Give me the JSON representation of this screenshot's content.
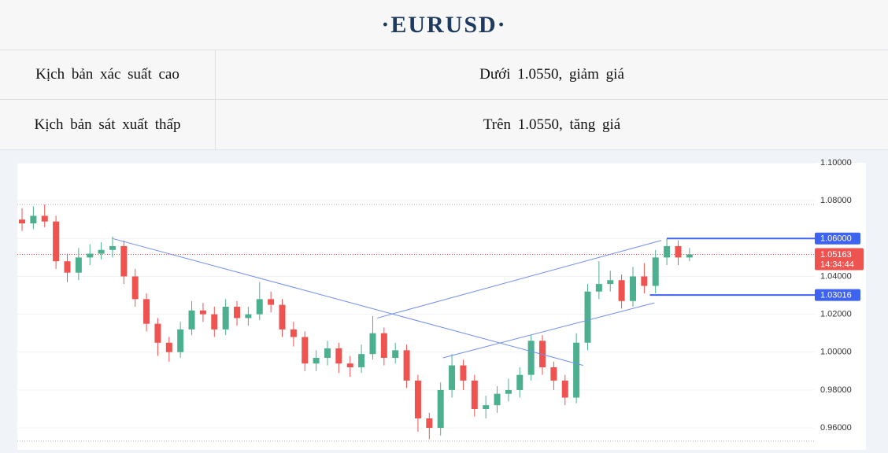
{
  "header": {
    "title": "·EURUSD·"
  },
  "table": {
    "rows": [
      [
        "Kịch bản xác suất cao",
        "Dưới 1.0550, giảm giá"
      ],
      [
        "Kịch bản sát xuất thấp",
        "Trên 1.0550, tăng giá"
      ]
    ]
  },
  "chart_data": {
    "type": "candlestick",
    "open": [
      1.07,
      1.068,
      1.072,
      1.069,
      1.048,
      1.042,
      1.05,
      1.052,
      1.054,
      1.056,
      1.04,
      1.028,
      1.015,
      1.005,
      1.0,
      1.012,
      1.022,
      1.02,
      1.012,
      1.024,
      1.018,
      1.02,
      1.028,
      1.025,
      1.012,
      1.008,
      0.994,
      0.997,
      1.002,
      0.994,
      0.992,
      0.999,
      1.01,
      0.997,
      1.001,
      0.985,
      0.965,
      0.96,
      0.98,
      0.993,
      0.985,
      0.97,
      0.972,
      0.978,
      0.98,
      0.988,
      1.006,
      0.992,
      0.985,
      0.976,
      1.005,
      1.032,
      1.036,
      1.038,
      1.027,
      1.04,
      1.035,
      1.05,
      1.056,
      1.05
    ],
    "high": [
      1.076,
      1.077,
      1.078,
      1.072,
      1.052,
      1.055,
      1.057,
      1.058,
      1.061,
      1.059,
      1.044,
      1.031,
      1.018,
      1.008,
      1.016,
      1.027,
      1.026,
      1.024,
      1.028,
      1.027,
      1.024,
      1.037,
      1.032,
      1.028,
      1.016,
      1.011,
      1.001,
      1.006,
      1.005,
      0.998,
      1.004,
      1.019,
      1.013,
      1.005,
      1.004,
      0.988,
      0.968,
      0.984,
      0.999,
      0.996,
      0.988,
      0.977,
      0.982,
      0.986,
      0.992,
      1.009,
      1.009,
      0.995,
      0.988,
      1.01,
      1.036,
      1.048,
      1.043,
      1.041,
      1.045,
      1.047,
      1.054,
      1.06,
      1.059,
      1.055
    ],
    "low": [
      1.064,
      1.065,
      1.066,
      1.044,
      1.037,
      1.038,
      1.046,
      1.049,
      1.05,
      1.036,
      1.024,
      1.011,
      0.998,
      0.995,
      0.997,
      1.009,
      1.016,
      1.008,
      1.009,
      1.014,
      1.014,
      1.017,
      1.021,
      1.008,
      1.003,
      0.99,
      0.99,
      0.993,
      0.989,
      0.987,
      0.989,
      0.996,
      0.993,
      0.994,
      0.981,
      0.958,
      0.954,
      0.956,
      0.976,
      0.98,
      0.966,
      0.965,
      0.968,
      0.974,
      0.976,
      0.985,
      0.988,
      0.98,
      0.972,
      0.973,
      1.001,
      1.028,
      1.032,
      1.023,
      1.024,
      1.031,
      1.031,
      1.046,
      1.046,
      1.048
    ],
    "close": [
      1.068,
      1.072,
      1.069,
      1.048,
      1.042,
      1.05,
      1.052,
      1.054,
      1.056,
      1.04,
      1.028,
      1.015,
      1.005,
      1.0,
      1.012,
      1.022,
      1.02,
      1.012,
      1.024,
      1.018,
      1.02,
      1.028,
      1.025,
      1.012,
      1.008,
      0.994,
      0.997,
      1.002,
      0.994,
      0.992,
      0.999,
      1.01,
      0.997,
      1.001,
      0.985,
      0.965,
      0.96,
      0.98,
      0.993,
      0.985,
      0.97,
      0.972,
      0.978,
      0.98,
      0.988,
      1.006,
      0.992,
      0.985,
      0.976,
      1.005,
      1.032,
      1.036,
      1.038,
      1.027,
      1.04,
      1.035,
      1.05,
      1.056,
      1.05,
      1.0516
    ],
    "up_color": "#4caf8f",
    "down_color": "#ef5350",
    "ylim": [
      0.9484,
      1.1
    ],
    "yticks": [
      {
        "value": 0.96,
        "label": "0.96000"
      },
      {
        "value": 0.98,
        "label": "0.98000"
      },
      {
        "value": 1.0,
        "label": "1.00000"
      },
      {
        "value": 1.02,
        "label": "1.02000"
      },
      {
        "value": 1.04,
        "label": "1.04000"
      },
      {
        "value": 1.06,
        "label": "1.06000"
      },
      {
        "value": 1.08,
        "label": "1.08000"
      },
      {
        "value": 1.1,
        "label": "1.10000"
      }
    ],
    "trend_lines": [
      {
        "x": [
          8,
          49.6
        ],
        "y": [
          1.06,
          0.993
        ],
        "color": "#6f8df0"
      },
      {
        "x": [
          31.4,
          56.5
        ],
        "y": [
          1.018,
          1.059
        ],
        "color": "#6f8df0"
      },
      {
        "x": [
          37.2,
          55.9
        ],
        "y": [
          0.997,
          1.026
        ],
        "color": "#6f8df0"
      }
    ],
    "reference_lines": [
      1.078,
      0.953
    ],
    "levels": [
      {
        "value": 1.06,
        "label": "1.06000",
        "x": 57,
        "color": "#3d63f0"
      },
      {
        "value": 1.03016,
        "label": "1.03016",
        "x": 55.5,
        "color": "#3d63f0"
      }
    ],
    "last_price": {
      "value": 1.05163,
      "label": "1.05163",
      "time": "14:34:44",
      "color": "#ef5350"
    }
  }
}
